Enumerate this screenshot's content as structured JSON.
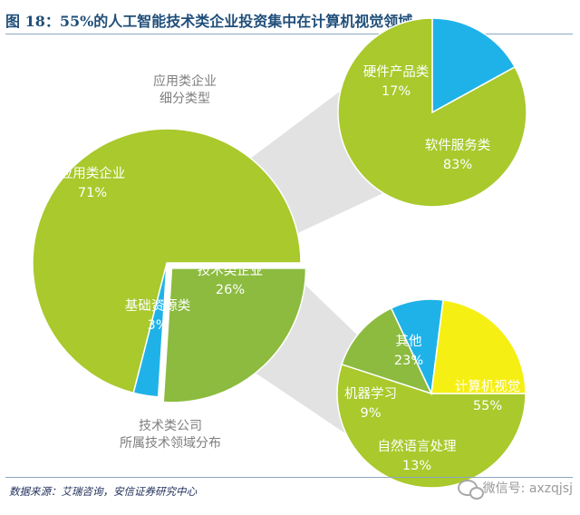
{
  "figure": {
    "title": "图 18：55%的人工智能技术类企业投资集中在计算机视觉领域",
    "source": "数据来源：艾瑞咨询，安信证券研究中心",
    "watermark": "微信号: axzqjsj"
  },
  "colors": {
    "green": "#a9c92c",
    "green_dark": "#8cbb3f",
    "cyan": "#1fb2e8",
    "yellow": "#f6ef14",
    "connector": "#d8d8d8",
    "label": "#ffffff"
  },
  "chart_data": [
    {
      "type": "pie",
      "title": [
        "应用类企业",
        "细分类型"
      ],
      "slices": [
        {
          "label": "应用类企业",
          "value": 71
        },
        {
          "label": "技术类企业",
          "value": 26
        },
        {
          "label": "基础资源类",
          "value": 3
        }
      ]
    },
    {
      "type": "pie",
      "title": [],
      "slices": [
        {
          "label": "硬件产品类",
          "value": 17
        },
        {
          "label": "软件服务类",
          "value": 83
        }
      ]
    },
    {
      "type": "pie",
      "title": [
        "技术类公司",
        "所属技术领域分布"
      ],
      "slices": [
        {
          "label": "计算机视觉",
          "value": 55
        },
        {
          "label": "自然语言处理",
          "value": 13
        },
        {
          "label": "机器学习",
          "value": 9
        },
        {
          "label": "其他",
          "value": 23
        }
      ]
    }
  ]
}
